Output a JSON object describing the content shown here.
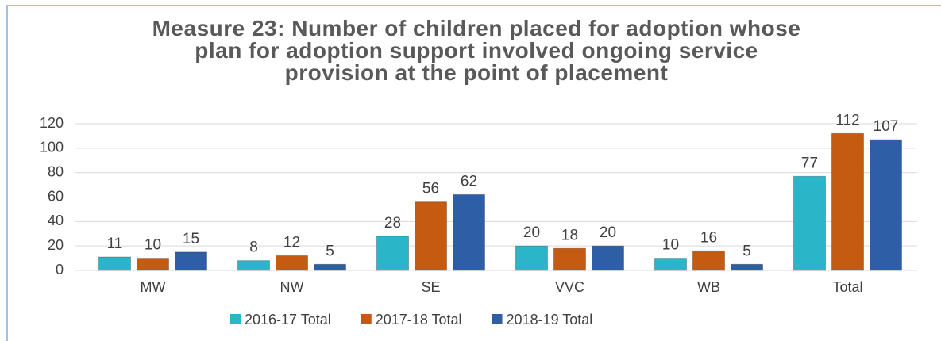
{
  "chart_data": {
    "type": "bar",
    "title": "Measure 23: Number of children placed for adoption whose plan for adoption support involved ongoing service provision at the point of placement",
    "categories": [
      "MW",
      "NW",
      "SE",
      "VVC",
      "WB",
      "Total"
    ],
    "series": [
      {
        "name": "2016-17 Total",
        "color": "#2bb5c8",
        "values": [
          11,
          8,
          28,
          20,
          10,
          77
        ]
      },
      {
        "name": "2017-18 Total",
        "color": "#c55a11",
        "values": [
          10,
          12,
          56,
          18,
          16,
          112
        ]
      },
      {
        "name": "2018-19 Total",
        "color": "#2e5fa6",
        "values": [
          15,
          5,
          62,
          20,
          5,
          107
        ]
      }
    ],
    "ylim": [
      0,
      120
    ],
    "yticks": [
      0,
      20,
      40,
      60,
      80,
      100,
      120
    ],
    "grid": true,
    "legend": "bottom"
  }
}
